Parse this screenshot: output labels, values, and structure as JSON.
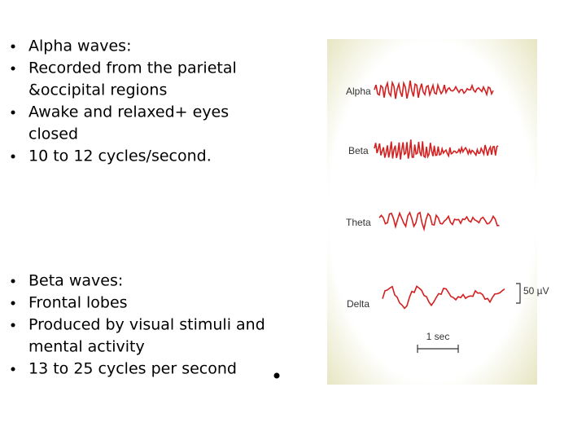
{
  "slide": {
    "bullets_top": [
      "Alpha waves:",
      "Recorded from the parietal",
      "&occipital regions",
      "Awake and relaxed+ eyes",
      "closed",
      "10 to 12 cycles/second."
    ],
    "bullets_bottom": [
      "Beta waves:",
      "Frontal lobes",
      "Produced by visual stimuli and",
      "mental activity",
      "13 to 25 cycles per second"
    ],
    "figure": {
      "labels": [
        "Alpha",
        "Beta",
        "Theta",
        "Delta"
      ],
      "amplitude_scale": "50 µV",
      "time_scale": "1 sec"
    }
  }
}
